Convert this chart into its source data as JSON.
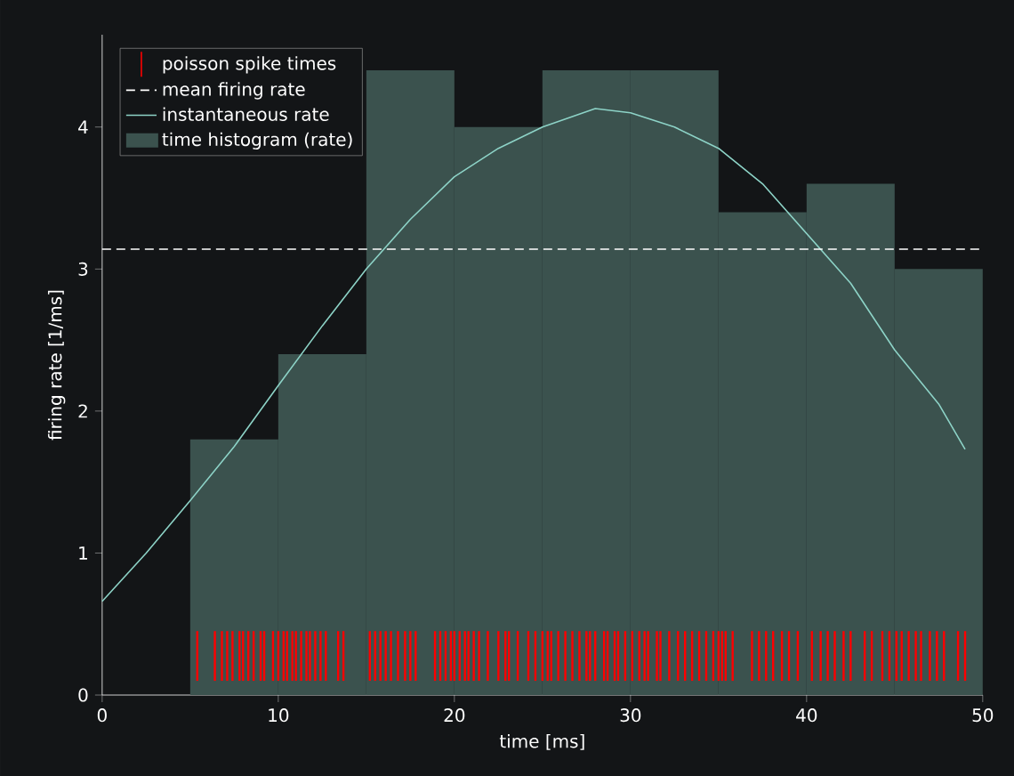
{
  "chart_data": {
    "type": "histogram",
    "xlabel": "time [ms]",
    "ylabel": "firing rate [1/ms]",
    "bins": [
      0,
      5,
      10,
      15,
      20,
      25,
      30,
      35,
      40,
      45,
      50
    ],
    "xlim": [
      0,
      50
    ],
    "ylim": [
      0,
      4.65
    ],
    "xticks": [
      0,
      10,
      20,
      30,
      40,
      50
    ],
    "yticks": [
      0,
      1,
      2,
      3,
      4
    ],
    "legend": "top left",
    "grid": false,
    "ref_lines": [
      {
        "axis": "y",
        "value": 3.14,
        "label": "mean firing rate",
        "color": "#ffffff",
        "line_style": "dashed"
      }
    ],
    "series": [
      {
        "type": "bar",
        "name": "poisson spike times",
        "color": "#ff0000",
        "base": [
          0.1,
          0.1,
          0.1,
          0.1,
          0.1,
          0.1,
          0.1,
          0.1,
          0.1,
          0.1,
          0.1,
          0.1,
          0.1,
          0.1,
          0.1,
          0.1,
          0.1,
          0.1,
          0.1,
          0.1,
          0.1,
          0.1,
          0.1,
          0.1,
          0.1,
          0.1,
          0.1,
          0.1,
          0.1,
          0.1,
          0.1,
          0.1,
          0.1,
          0.1,
          0.1,
          0.1,
          0.1,
          0.1,
          0.1,
          0.1,
          0.1,
          0.1,
          0.1,
          0.1,
          0.1,
          0.1,
          0.1,
          0.1,
          0.1,
          0.1,
          0.1,
          0.1,
          0.1,
          0.1,
          0.1,
          0.1,
          0.1,
          0.1,
          0.1,
          0.1,
          0.1,
          0.1,
          0.1,
          0.1,
          0.1,
          0.1,
          0.1,
          0.1,
          0.1,
          0.1,
          0.1,
          0.1,
          0.1,
          0.1,
          0.1,
          0.1,
          0.1,
          0.1,
          0.1,
          0.1,
          0.1,
          0.1,
          0.1,
          0.1,
          0.1,
          0.1,
          0.1,
          0.1,
          0.1,
          0.1,
          0.1,
          0.1,
          0.1,
          0.1,
          0.1,
          0.1,
          0.1,
          0.1,
          0.1,
          0.1,
          0.1,
          0.1,
          0.1,
          0.1,
          0.1,
          0.1,
          0.1,
          0.1,
          0.1,
          0.1
        ],
        "x": [
          5.4,
          6.4,
          6.8,
          7.1,
          7.4,
          7.8,
          8.0,
          8.3,
          8.6,
          9.0,
          9.2,
          9.7,
          10.0,
          10.3,
          10.5,
          10.8,
          11.0,
          11.3,
          11.6,
          11.8,
          12.1,
          12.4,
          12.7,
          13.4,
          13.7,
          15.2,
          15.5,
          15.8,
          16.1,
          16.4,
          16.8,
          17.2,
          17.5,
          17.8,
          18.9,
          19.2,
          19.5,
          19.8,
          20.0,
          20.3,
          20.6,
          20.8,
          21.1,
          21.4,
          21.9,
          22.5,
          22.9,
          23.1,
          23.6,
          24.2,
          24.6,
          25.0,
          25.3,
          25.5,
          25.9,
          26.3,
          26.7,
          27.1,
          27.5,
          27.7,
          28.0,
          28.5,
          28.7,
          29.1,
          29.3,
          29.7,
          30.1,
          30.5,
          30.8,
          31.0,
          31.5,
          31.7,
          32.2,
          32.7,
          33.1,
          33.5,
          33.9,
          34.3,
          34.7,
          35.0,
          35.2,
          35.4,
          35.8,
          36.9,
          37.3,
          37.7,
          38.1,
          38.6,
          39.0,
          39.5,
          40.3,
          40.8,
          41.2,
          41.6,
          42.1,
          42.5,
          43.3,
          43.7,
          44.3,
          44.7,
          45.1,
          45.4,
          45.8,
          46.2,
          46.5,
          47.0,
          47.4,
          47.8,
          48.6,
          49.0
        ],
        "values": [
          0.35,
          0.35,
          0.35,
          0.35,
          0.35,
          0.35,
          0.35,
          0.35,
          0.35,
          0.35,
          0.35,
          0.35,
          0.35,
          0.35,
          0.35,
          0.35,
          0.35,
          0.35,
          0.35,
          0.35,
          0.35,
          0.35,
          0.35,
          0.35,
          0.35,
          0.35,
          0.35,
          0.35,
          0.35,
          0.35,
          0.35,
          0.35,
          0.35,
          0.35,
          0.35,
          0.35,
          0.35,
          0.35,
          0.35,
          0.35,
          0.35,
          0.35,
          0.35,
          0.35,
          0.35,
          0.35,
          0.35,
          0.35,
          0.35,
          0.35,
          0.35,
          0.35,
          0.35,
          0.35,
          0.35,
          0.35,
          0.35,
          0.35,
          0.35,
          0.35,
          0.35,
          0.35,
          0.35,
          0.35,
          0.35,
          0.35,
          0.35,
          0.35,
          0.35,
          0.35,
          0.35,
          0.35,
          0.35,
          0.35,
          0.35,
          0.35,
          0.35,
          0.35,
          0.35,
          0.35,
          0.35,
          0.35,
          0.35,
          0.35,
          0.35,
          0.35,
          0.35,
          0.35,
          0.35,
          0.35,
          0.35,
          0.35,
          0.35,
          0.35,
          0.35,
          0.35,
          0.35,
          0.35,
          0.35,
          0.35,
          0.35,
          0.35,
          0.35,
          0.35,
          0.35,
          0.35,
          0.35,
          0.35,
          0.35,
          0.35
        ]
      },
      {
        "type": "line",
        "name": "instantaneous rate",
        "color": "#8dd3c7",
        "x": [
          0,
          2.5,
          5,
          7.5,
          10,
          12.5,
          15,
          17.5,
          20,
          22.5,
          25,
          28,
          30,
          32.5,
          35,
          37.5,
          40,
          42.5,
          45,
          47.5,
          49
        ],
        "values": [
          0.66,
          1.0,
          1.37,
          1.75,
          2.18,
          2.6,
          3.0,
          3.35,
          3.65,
          3.85,
          4.0,
          4.13,
          4.1,
          4.0,
          3.85,
          3.6,
          3.25,
          2.9,
          2.43,
          2.05,
          1.73
        ]
      },
      {
        "name": "time histogram (rate)",
        "color": "#3b524e",
        "values": [
          0,
          1.8,
          2.4,
          4.4,
          4.0,
          4.4,
          4.4,
          3.4,
          3.6,
          3.0
        ]
      }
    ]
  }
}
